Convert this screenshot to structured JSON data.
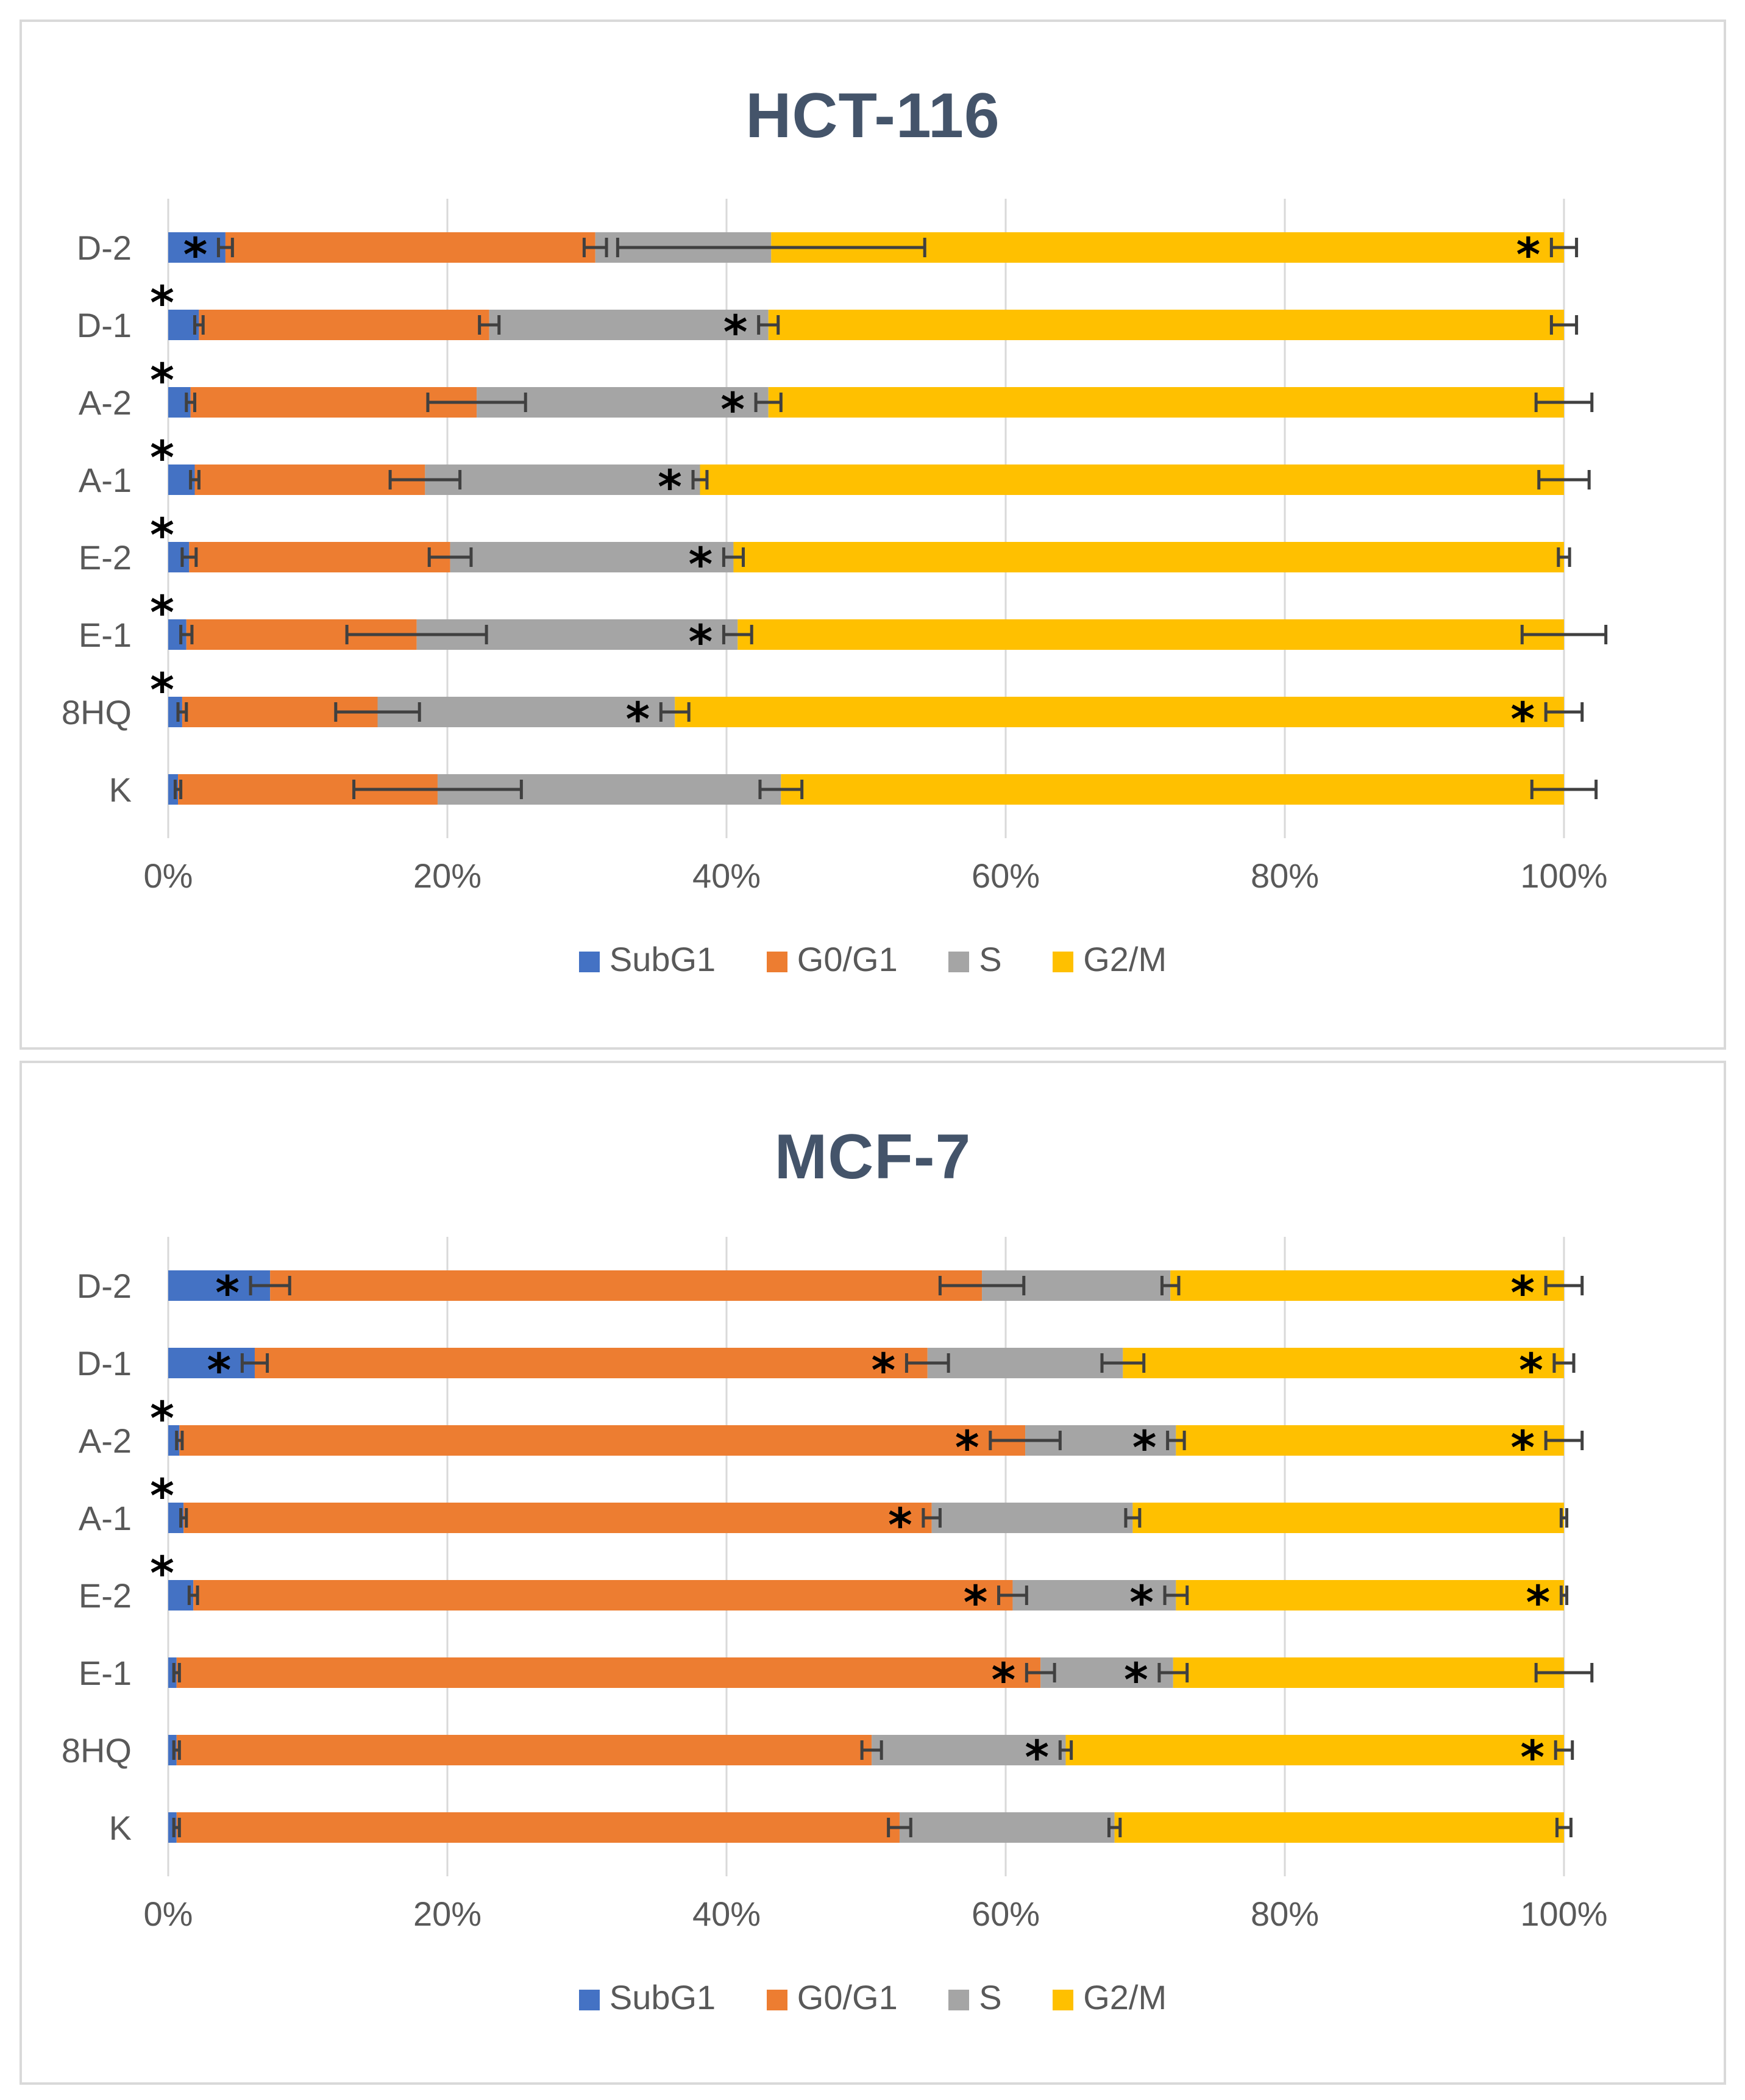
{
  "colors": {
    "SubG1": "#4472c4",
    "G0/G1": "#ed7d31",
    "S": "#a5a5a5",
    "G2/M": "#ffc000",
    "axis_text": "#595959",
    "title_text": "#44546a",
    "grid": "#d9d9d9",
    "error_bar": "#404040"
  },
  "chart_data": [
    {
      "type": "bar",
      "orientation": "horizontal",
      "stacked": "percent",
      "title": "HCT-116",
      "categories": [
        "D-2",
        "D-1",
        "A-2",
        "A-1",
        "E-2",
        "E-1",
        "8HQ",
        "K"
      ],
      "xlim": [
        0,
        100
      ],
      "xticks": [
        "0%",
        "20%",
        "40%",
        "60%",
        "80%",
        "100%"
      ],
      "grid": "vertical",
      "legend_position": "bottom",
      "series": [
        {
          "name": "SubG1",
          "values": [
            4.1,
            2.2,
            1.6,
            1.9,
            1.5,
            1.3,
            1.0,
            0.7
          ],
          "errors": [
            0.5,
            0.3,
            0.3,
            0.3,
            0.5,
            0.4,
            0.3,
            0.2
          ]
        },
        {
          "name": "G0/G1",
          "values": [
            26.5,
            20.8,
            20.5,
            16.5,
            18.7,
            16.5,
            14.0,
            18.6
          ],
          "errors": [
            0.8,
            0.7,
            3.5,
            2.5,
            1.5,
            5.0,
            3.0,
            6.0
          ]
        },
        {
          "name": "S",
          "values": [
            12.6,
            20.0,
            20.9,
            19.7,
            20.3,
            23.0,
            21.3,
            24.6
          ],
          "errors": [
            11.0,
            0.7,
            0.9,
            0.5,
            0.7,
            1.0,
            1.0,
            1.5
          ]
        },
        {
          "name": "G2/M",
          "values": [
            56.8,
            57.0,
            57.0,
            61.9,
            59.5,
            59.2,
            63.7,
            56.1
          ],
          "errors": [
            0.9,
            0.9,
            2.0,
            1.8,
            0.4,
            3.0,
            1.3,
            2.3
          ]
        }
      ],
      "asterisks": [
        {
          "category": "D-2",
          "after_series": [
            "SubG1",
            "G2/M"
          ]
        },
        {
          "category": "D-1",
          "after_series": [
            "SubG1",
            "S"
          ]
        },
        {
          "category": "A-2",
          "after_series": [
            "SubG1",
            "S"
          ]
        },
        {
          "category": "A-1",
          "after_series": [
            "SubG1",
            "S"
          ]
        },
        {
          "category": "E-2",
          "after_series": [
            "SubG1",
            "S"
          ]
        },
        {
          "category": "E-1",
          "after_series": [
            "SubG1",
            "S"
          ]
        },
        {
          "category": "8HQ",
          "after_series": [
            "SubG1",
            "S",
            "G2/M"
          ]
        },
        {
          "category": "K",
          "after_series": []
        }
      ]
    },
    {
      "type": "bar",
      "orientation": "horizontal",
      "stacked": "percent",
      "title": "MCF-7",
      "categories": [
        "D-2",
        "D-1",
        "A-2",
        "A-1",
        "E-2",
        "E-1",
        "8HQ",
        "K"
      ],
      "xlim": [
        0,
        100
      ],
      "xticks": [
        "0%",
        "20%",
        "40%",
        "60%",
        "80%",
        "100%"
      ],
      "grid": "vertical",
      "legend_position": "bottom",
      "series": [
        {
          "name": "SubG1",
          "values": [
            7.3,
            6.2,
            0.8,
            1.1,
            1.8,
            0.6,
            0.6,
            0.6
          ],
          "errors": [
            1.4,
            0.9,
            0.2,
            0.2,
            0.3,
            0.2,
            0.2,
            0.2
          ]
        },
        {
          "name": "G0/G1",
          "values": [
            51.0,
            48.2,
            60.6,
            53.6,
            58.7,
            61.9,
            49.8,
            51.8
          ],
          "errors": [
            3.0,
            1.5,
            2.5,
            0.6,
            1.0,
            1.0,
            0.7,
            0.8
          ]
        },
        {
          "name": "S",
          "values": [
            13.5,
            14.0,
            10.8,
            14.4,
            11.7,
            9.5,
            13.9,
            15.4
          ],
          "errors": [
            0.6,
            1.5,
            0.6,
            0.5,
            0.8,
            1.0,
            0.4,
            0.4
          ]
        },
        {
          "name": "G2/M",
          "values": [
            28.2,
            31.6,
            27.8,
            30.9,
            27.8,
            28.0,
            35.7,
            32.2
          ],
          "errors": [
            1.3,
            0.7,
            1.3,
            0.2,
            0.2,
            2.0,
            0.6,
            0.5
          ]
        }
      ],
      "asterisks": [
        {
          "category": "D-2",
          "after_series": [
            "SubG1",
            "G2/M"
          ]
        },
        {
          "category": "D-1",
          "after_series": [
            "SubG1",
            "G0/G1",
            "G2/M"
          ]
        },
        {
          "category": "A-2",
          "after_series": [
            "SubG1",
            "G0/G1",
            "S",
            "G2/M"
          ]
        },
        {
          "category": "A-1",
          "after_series": [
            "SubG1",
            "G0/G1"
          ]
        },
        {
          "category": "E-2",
          "after_series": [
            "SubG1",
            "G0/G1",
            "S",
            "G2/M"
          ]
        },
        {
          "category": "E-1",
          "after_series": [
            "G0/G1",
            "S"
          ]
        },
        {
          "category": "8HQ",
          "after_series": [
            "S",
            "G2/M"
          ]
        },
        {
          "category": "K",
          "after_series": []
        }
      ]
    }
  ]
}
